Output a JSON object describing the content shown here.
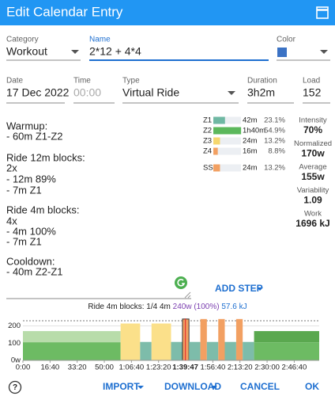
{
  "header": {
    "title": "Edit Calendar Entry"
  },
  "form": {
    "category": {
      "label": "Category",
      "value": "Workout"
    },
    "name": {
      "label": "Name",
      "value": "2*12 + 4*4"
    },
    "color": {
      "label": "Color",
      "value": "#3b72c4"
    },
    "date": {
      "label": "Date",
      "value": "17 Dec 2022"
    },
    "time": {
      "label": "Time",
      "placeholder": "00:00"
    },
    "type": {
      "label": "Type",
      "value": "Virtual Ride"
    },
    "duration": {
      "label": "Duration",
      "value": "3h2m"
    },
    "load": {
      "label": "Load",
      "value": 152
    }
  },
  "description": [
    {
      "heading": "Warmup:",
      "lines": [
        "- 60m Z1-Z2"
      ]
    },
    {
      "heading": "Ride 12m blocks:",
      "lines": [
        "2x",
        "- 12m 89%",
        "- 7m Z1"
      ]
    },
    {
      "heading": "Ride 4m blocks:",
      "lines": [
        "4x",
        "- 4m 100%",
        "- 7m Z1"
      ]
    },
    {
      "heading": "Cooldown:",
      "lines": [
        "- 40m Z2-Z1"
      ]
    }
  ],
  "zones": [
    {
      "name": "Z1",
      "time": "42m",
      "percent": 23.1,
      "percent_label": "23.1%",
      "color": "#6fb8a3"
    },
    {
      "name": "Z2",
      "time": "1h40m",
      "percent": 54.9,
      "percent_label": "54.9%",
      "color": "#5cb85c"
    },
    {
      "name": "Z3",
      "time": "24m",
      "percent": 13.2,
      "percent_label": "13.2%",
      "color": "#f5d76e"
    },
    {
      "name": "Z4",
      "time": "16m",
      "percent": 8.8,
      "percent_label": "8.8%",
      "color": "#f2a062"
    },
    {
      "name": "SS",
      "time": "24m",
      "percent": 13.2,
      "percent_label": "13.2%",
      "color": "#f2a062"
    }
  ],
  "stats": [
    {
      "label": "Intensity",
      "value": "70%"
    },
    {
      "label": "Normalized",
      "value": "170w"
    },
    {
      "label": "Average",
      "value": "155w"
    },
    {
      "label": "Variability",
      "value": "1.09"
    },
    {
      "label": "Work",
      "value": "1696 kJ"
    }
  ],
  "add_step": "ADD STEP",
  "status": {
    "step": "Ride 4m blocks: 1/4 4m",
    "power": "240w (100%)",
    "energy": "57.6 kJ"
  },
  "workout_chart": {
    "xlim": [
      0,
      10920
    ],
    "ylim": [
      0,
      230
    ],
    "yticks": [
      {
        "value": 0,
        "label": "0w"
      },
      100,
      200
    ],
    "xticks": [
      {
        "value": 0,
        "label": "0:00"
      },
      {
        "value": 1000,
        "label": "16:40"
      },
      {
        "value": 2000,
        "label": "33:20"
      },
      {
        "value": 3000,
        "label": "50:00"
      },
      {
        "value": 4000,
        "label": "1:06:40"
      },
      {
        "value": 5000,
        "label": "1:23:20"
      },
      {
        "value": 7000,
        "label": "1:56:40"
      },
      {
        "value": 8000,
        "label": "2:13:20"
      },
      {
        "value": 9000,
        "label": "2:30:00"
      },
      {
        "value": 10000,
        "label": "2:46:40"
      }
    ],
    "cursor": {
      "value": 5987,
      "label": "1:39:47"
    },
    "selected_segment": 5,
    "segments": [
      {
        "duration_s": 3600,
        "watts": 105,
        "watts_max": 170,
        "color": "#6dbb63",
        "color_max": "#b8dcaa"
      },
      {
        "duration_s": 720,
        "watts": 214,
        "color": "#fbe08a"
      },
      {
        "duration_s": 420,
        "watts": 107,
        "color": "#7dbcaa"
      },
      {
        "duration_s": 720,
        "watts": 214,
        "color": "#fbe08a"
      },
      {
        "duration_s": 420,
        "watts": 107,
        "color": "#7dbcaa"
      },
      {
        "duration_s": 240,
        "watts": 240,
        "color": "#f2a062"
      },
      {
        "duration_s": 420,
        "watts": 107,
        "color": "#7dbcaa"
      },
      {
        "duration_s": 240,
        "watts": 240,
        "color": "#f2a062"
      },
      {
        "duration_s": 420,
        "watts": 107,
        "color": "#7dbcaa"
      },
      {
        "duration_s": 240,
        "watts": 240,
        "color": "#f2a062"
      },
      {
        "duration_s": 420,
        "watts": 107,
        "color": "#7dbcaa"
      },
      {
        "duration_s": 240,
        "watts": 240,
        "color": "#f2a062"
      },
      {
        "duration_s": 420,
        "watts": 107,
        "color": "#7dbcaa"
      },
      {
        "duration_s": 2400,
        "watts": 105,
        "watts_max": 170,
        "color": "#6dbb63",
        "color_max": "#5aa84f"
      }
    ]
  },
  "buttons": {
    "help": "?",
    "import": "IMPORT",
    "download": "DOWNLOAD",
    "cancel": "CANCEL",
    "ok": "OK"
  }
}
